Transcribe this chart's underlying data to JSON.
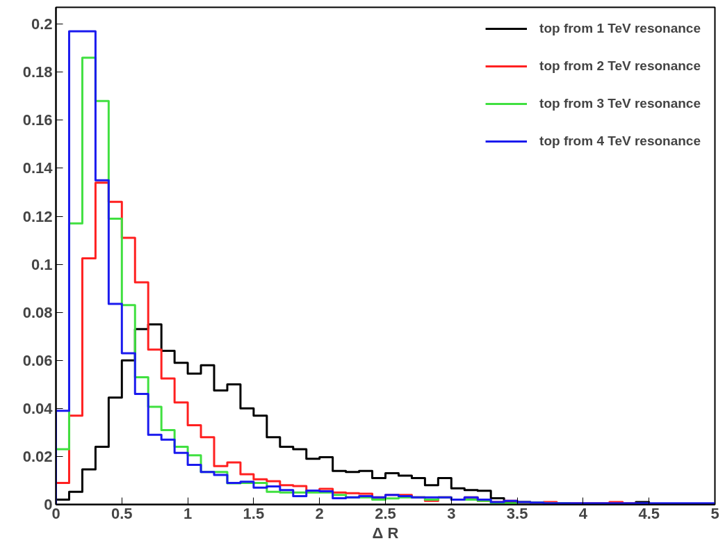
{
  "chart_data": {
    "type": "histogram",
    "xlabel": "Δ R",
    "bins": [
      0,
      0.1,
      0.2,
      0.3,
      0.4,
      0.5,
      0.6,
      0.7,
      0.8,
      0.9,
      1.0,
      1.1,
      1.2,
      1.3,
      1.4,
      1.5,
      1.6,
      1.7,
      1.8,
      1.9,
      2.0,
      2.1,
      2.2,
      2.3,
      2.4,
      2.5,
      2.6,
      2.7,
      2.8,
      2.9,
      3.0,
      3.1,
      3.2,
      3.3,
      3.4,
      3.5,
      3.6,
      3.7,
      3.8,
      3.9,
      4.0,
      4.1,
      4.2,
      4.3,
      4.4,
      4.5,
      4.6,
      4.7,
      4.8,
      4.9,
      5.0
    ],
    "series": [
      {
        "name": "top from 1 TeV resonance",
        "color": "#000000",
        "values": [
          0.002,
          0.0053,
          0.0146,
          0.024,
          0.0445,
          0.06,
          0.073,
          0.075,
          0.064,
          0.059,
          0.0545,
          0.058,
          0.0475,
          0.05,
          0.04,
          0.037,
          0.028,
          0.024,
          0.023,
          0.019,
          0.0197,
          0.014,
          0.0135,
          0.014,
          0.011,
          0.013,
          0.012,
          0.011,
          0.008,
          0.011,
          0.0067,
          0.006,
          0.0057,
          0.0026,
          0.001,
          0.001,
          0.0008,
          0.0005,
          0.0005,
          0.0003,
          0.0003,
          0.0003,
          0.0002,
          0.0003,
          0.001,
          0.0002,
          0.0002,
          0.0002,
          0.0002,
          0.0002
        ]
      },
      {
        "name": "top from 2 TeV resonance",
        "color": "#ff2020",
        "values": [
          0.009,
          0.037,
          0.1025,
          0.134,
          0.126,
          0.111,
          0.0925,
          0.0645,
          0.0525,
          0.0425,
          0.033,
          0.028,
          0.016,
          0.0175,
          0.0126,
          0.0105,
          0.0097,
          0.008,
          0.0077,
          0.0058,
          0.0065,
          0.005,
          0.0047,
          0.0045,
          0.003,
          0.004,
          0.004,
          0.003,
          0.0015,
          0.003,
          0.002,
          0.003,
          0.0015,
          0.001,
          0.0015,
          0.001,
          0.0008,
          0.001,
          0.0005,
          0.0005,
          0.0005,
          0.0005,
          0.001,
          0.0005,
          0.0003,
          0.0003,
          0.0002,
          0.0002,
          0.0002,
          0.0002
        ]
      },
      {
        "name": "top from 3 TeV resonance",
        "color": "#40e040",
        "values": [
          0.023,
          0.117,
          0.186,
          0.168,
          0.119,
          0.083,
          0.053,
          0.0407,
          0.031,
          0.024,
          0.0205,
          0.0135,
          0.0135,
          0.0088,
          0.009,
          0.009,
          0.0053,
          0.005,
          0.005,
          0.005,
          0.005,
          0.004,
          0.003,
          0.003,
          0.002,
          0.0025,
          0.003,
          0.003,
          0.002,
          0.003,
          0.002,
          0.002,
          0.0015,
          0.0005,
          0.0005,
          0.001,
          0.0008,
          0.0005,
          0.0005,
          0.0003,
          0.0003,
          0.0002,
          0.0002,
          0.0002,
          0.0002,
          0.0002,
          0.0002,
          0.0002,
          0.0002,
          0.0002
        ]
      },
      {
        "name": "top from 4 TeV resonance",
        "color": "#1a1aee",
        "values": [
          0.039,
          0.197,
          0.197,
          0.135,
          0.0835,
          0.063,
          0.046,
          0.029,
          0.027,
          0.0215,
          0.0165,
          0.0135,
          0.0123,
          0.009,
          0.0095,
          0.007,
          0.0075,
          0.006,
          0.0035,
          0.0058,
          0.0055,
          0.0026,
          0.003,
          0.0035,
          0.003,
          0.004,
          0.0035,
          0.003,
          0.003,
          0.003,
          0.002,
          0.003,
          0.002,
          0.001,
          0.0015,
          0.001,
          0.0008,
          0.0005,
          0.0005,
          0.0005,
          0.0005,
          0.0005,
          0.0005,
          0.0005,
          0.0005,
          0.0005,
          0.0005,
          0.0005,
          0.0005,
          0.0005
        ]
      }
    ],
    "xlim": [
      0,
      5
    ],
    "ylim": [
      0,
      0.207
    ],
    "xticks": [
      0,
      0.5,
      1,
      1.5,
      2,
      2.5,
      3,
      3.5,
      4,
      4.5,
      5
    ],
    "yticks": [
      0,
      0.02,
      0.04,
      0.06,
      0.08,
      0.1,
      0.12,
      0.14,
      0.16,
      0.18,
      0.2
    ],
    "grid": false,
    "legend": "top right"
  }
}
